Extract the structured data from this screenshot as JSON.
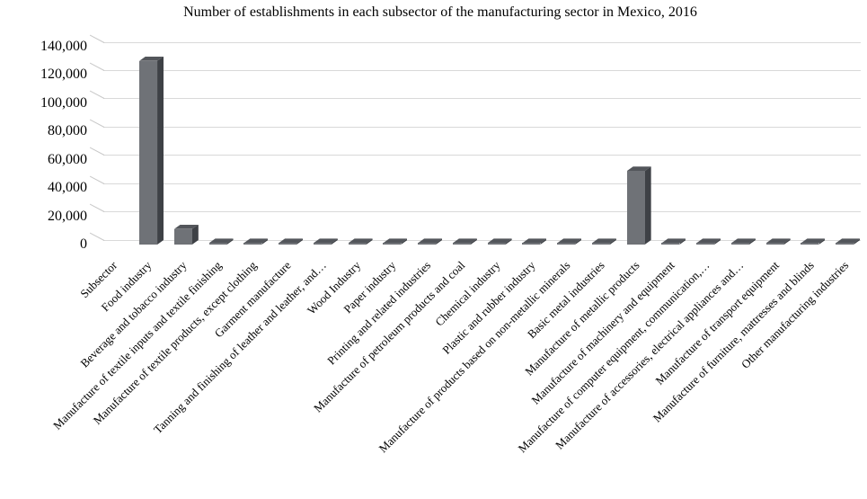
{
  "chart_data": {
    "type": "bar",
    "style": "3d-column",
    "title": "Number of establishments in each subsector of the manufacturing sector in Mexico, 2016",
    "xlabel": "",
    "ylabel": "",
    "ylim": [
      0,
      140000
    ],
    "ytick_interval": 20000,
    "ytick_labels": [
      "140,000",
      "120,000",
      "100,000",
      "80,000",
      "60,000",
      "40,000",
      "20,000",
      "0"
    ],
    "grid": true,
    "legend": false,
    "categories": [
      "Subsector",
      "Food industry",
      "Beverage and tobacco industry",
      "Manufacture of textile inputs and textile finishing",
      "Manufacture of textile products, except clothing",
      "Garment manufacture",
      "Tanning and finishing of leather and leather, and…",
      "Wood Industry",
      "Paper industry",
      "Printing and related industries",
      "Manufacture of petroleum products and coal",
      "Chemical industry",
      "Plastic and rubber industry",
      "Manufacture of products based on non-metallic minerals",
      "Basic metal industries",
      "Manufacture of metallic products",
      "Manufacture of machinery and equipment",
      "Manufacture of computer equipment, communication,…",
      "Manufacture of accessories, electrical appliances and…",
      "Manufacture of transport equipment",
      "Manufacture of furniture, mattresses and blinds",
      "Other manufacturing industries"
    ],
    "values": [
      null,
      130000,
      11000,
      1000,
      1000,
      1000,
      1000,
      1000,
      1000,
      1000,
      1000,
      1000,
      1000,
      1000,
      1000,
      52000,
      1000,
      1000,
      1000,
      1000,
      1000,
      1000
    ],
    "colors": {
      "bar_front": "#6f7277",
      "bar_top": "#53565b",
      "bar_side": "#3e4146",
      "gridline": "#d9d9d9",
      "axis_tick": "#c9c9c9",
      "text": "#000000",
      "background": "#ffffff"
    }
  }
}
